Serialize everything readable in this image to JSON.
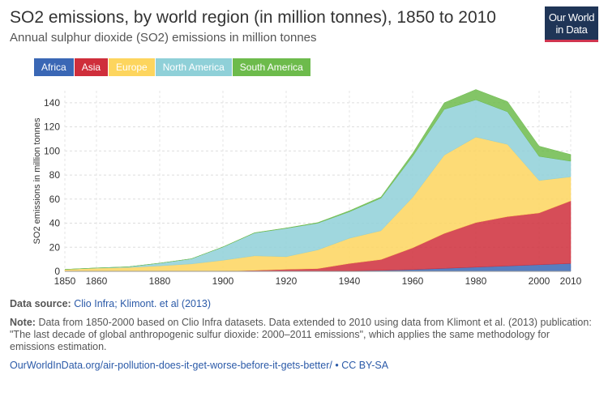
{
  "header": {
    "title": "SO2 emissions, by world region (in million tonnes), 1850 to 2010",
    "subtitle": "Annual sulphur dioxide (SO2) emissions in million tonnes"
  },
  "logo": {
    "line1": "Our World",
    "line2": "in Data"
  },
  "legend": [
    {
      "label": "Africa",
      "color": "#3a67b5"
    },
    {
      "label": "Asia",
      "color": "#cf2e3b"
    },
    {
      "label": "Europe",
      "color": "#fdd55e"
    },
    {
      "label": "North America",
      "color": "#8fd0d8"
    },
    {
      "label": "South America",
      "color": "#6dbb4c"
    }
  ],
  "chart_data": {
    "type": "area",
    "stacked": true,
    "ylabel": "SO2 emissions in million tonnes",
    "xlim": [
      1850,
      2010
    ],
    "ylim": [
      0,
      150
    ],
    "x_ticks": [
      1850,
      1860,
      1880,
      1900,
      1920,
      1940,
      1960,
      1980,
      2000,
      2010
    ],
    "y_ticks": [
      0,
      20,
      40,
      60,
      80,
      100,
      120,
      140
    ],
    "grid": true,
    "x": [
      1850,
      1860,
      1870,
      1880,
      1890,
      1900,
      1910,
      1920,
      1930,
      1940,
      1950,
      1960,
      1970,
      1980,
      1990,
      2000,
      2010
    ],
    "series": [
      {
        "name": "Africa",
        "color": "#3a67b5",
        "values": [
          0,
          0,
          0,
          0,
          0,
          0,
          0.1,
          0.2,
          0.3,
          0.5,
          0.8,
          1.5,
          2.5,
          3.5,
          4.5,
          5.5,
          6.5
        ]
      },
      {
        "name": "Asia",
        "color": "#cf2e3b",
        "values": [
          0,
          0,
          0,
          0,
          0,
          0.2,
          0.8,
          1.5,
          2,
          6,
          9,
          18,
          29,
          37,
          41,
          43,
          52
        ]
      },
      {
        "name": "Europe",
        "color": "#fdd55e",
        "values": [
          1.6,
          2.6,
          3.2,
          4.6,
          6.2,
          9,
          12,
          10.5,
          15.5,
          21,
          24,
          42,
          65,
          71,
          60,
          27,
          20
        ]
      },
      {
        "name": "North America",
        "color": "#8fd0d8",
        "values": [
          0,
          0.2,
          0.6,
          2.2,
          4.2,
          11,
          19,
          23.5,
          22.2,
          22,
          27,
          34,
          38,
          31,
          27,
          20,
          13
        ]
      },
      {
        "name": "South America",
        "color": "#6dbb4c",
        "values": [
          0,
          0,
          0,
          0,
          0,
          0.1,
          0.2,
          0.3,
          0.5,
          0.8,
          1,
          2.5,
          5.5,
          8.5,
          8.5,
          8.5,
          5.5
        ]
      }
    ]
  },
  "footer": {
    "source_label": "Data source:",
    "source_text": "Clio Infra; Klimont. et al (2013)",
    "note_label": "Note:",
    "note_text": "Data from 1850-2000 based on Clio Infra datasets. Data extended to 2010 using data from Klimont et al. (2013) publication: \"The last decade of global anthropogenic sulfur dioxide: 2000–2011 emissions\", which applies the same methodology for emissions estimation.",
    "url_text": "OurWorldInData.org/air-pollution-does-it-get-worse-before-it-gets-better/",
    "license_text": "• CC BY-SA"
  }
}
